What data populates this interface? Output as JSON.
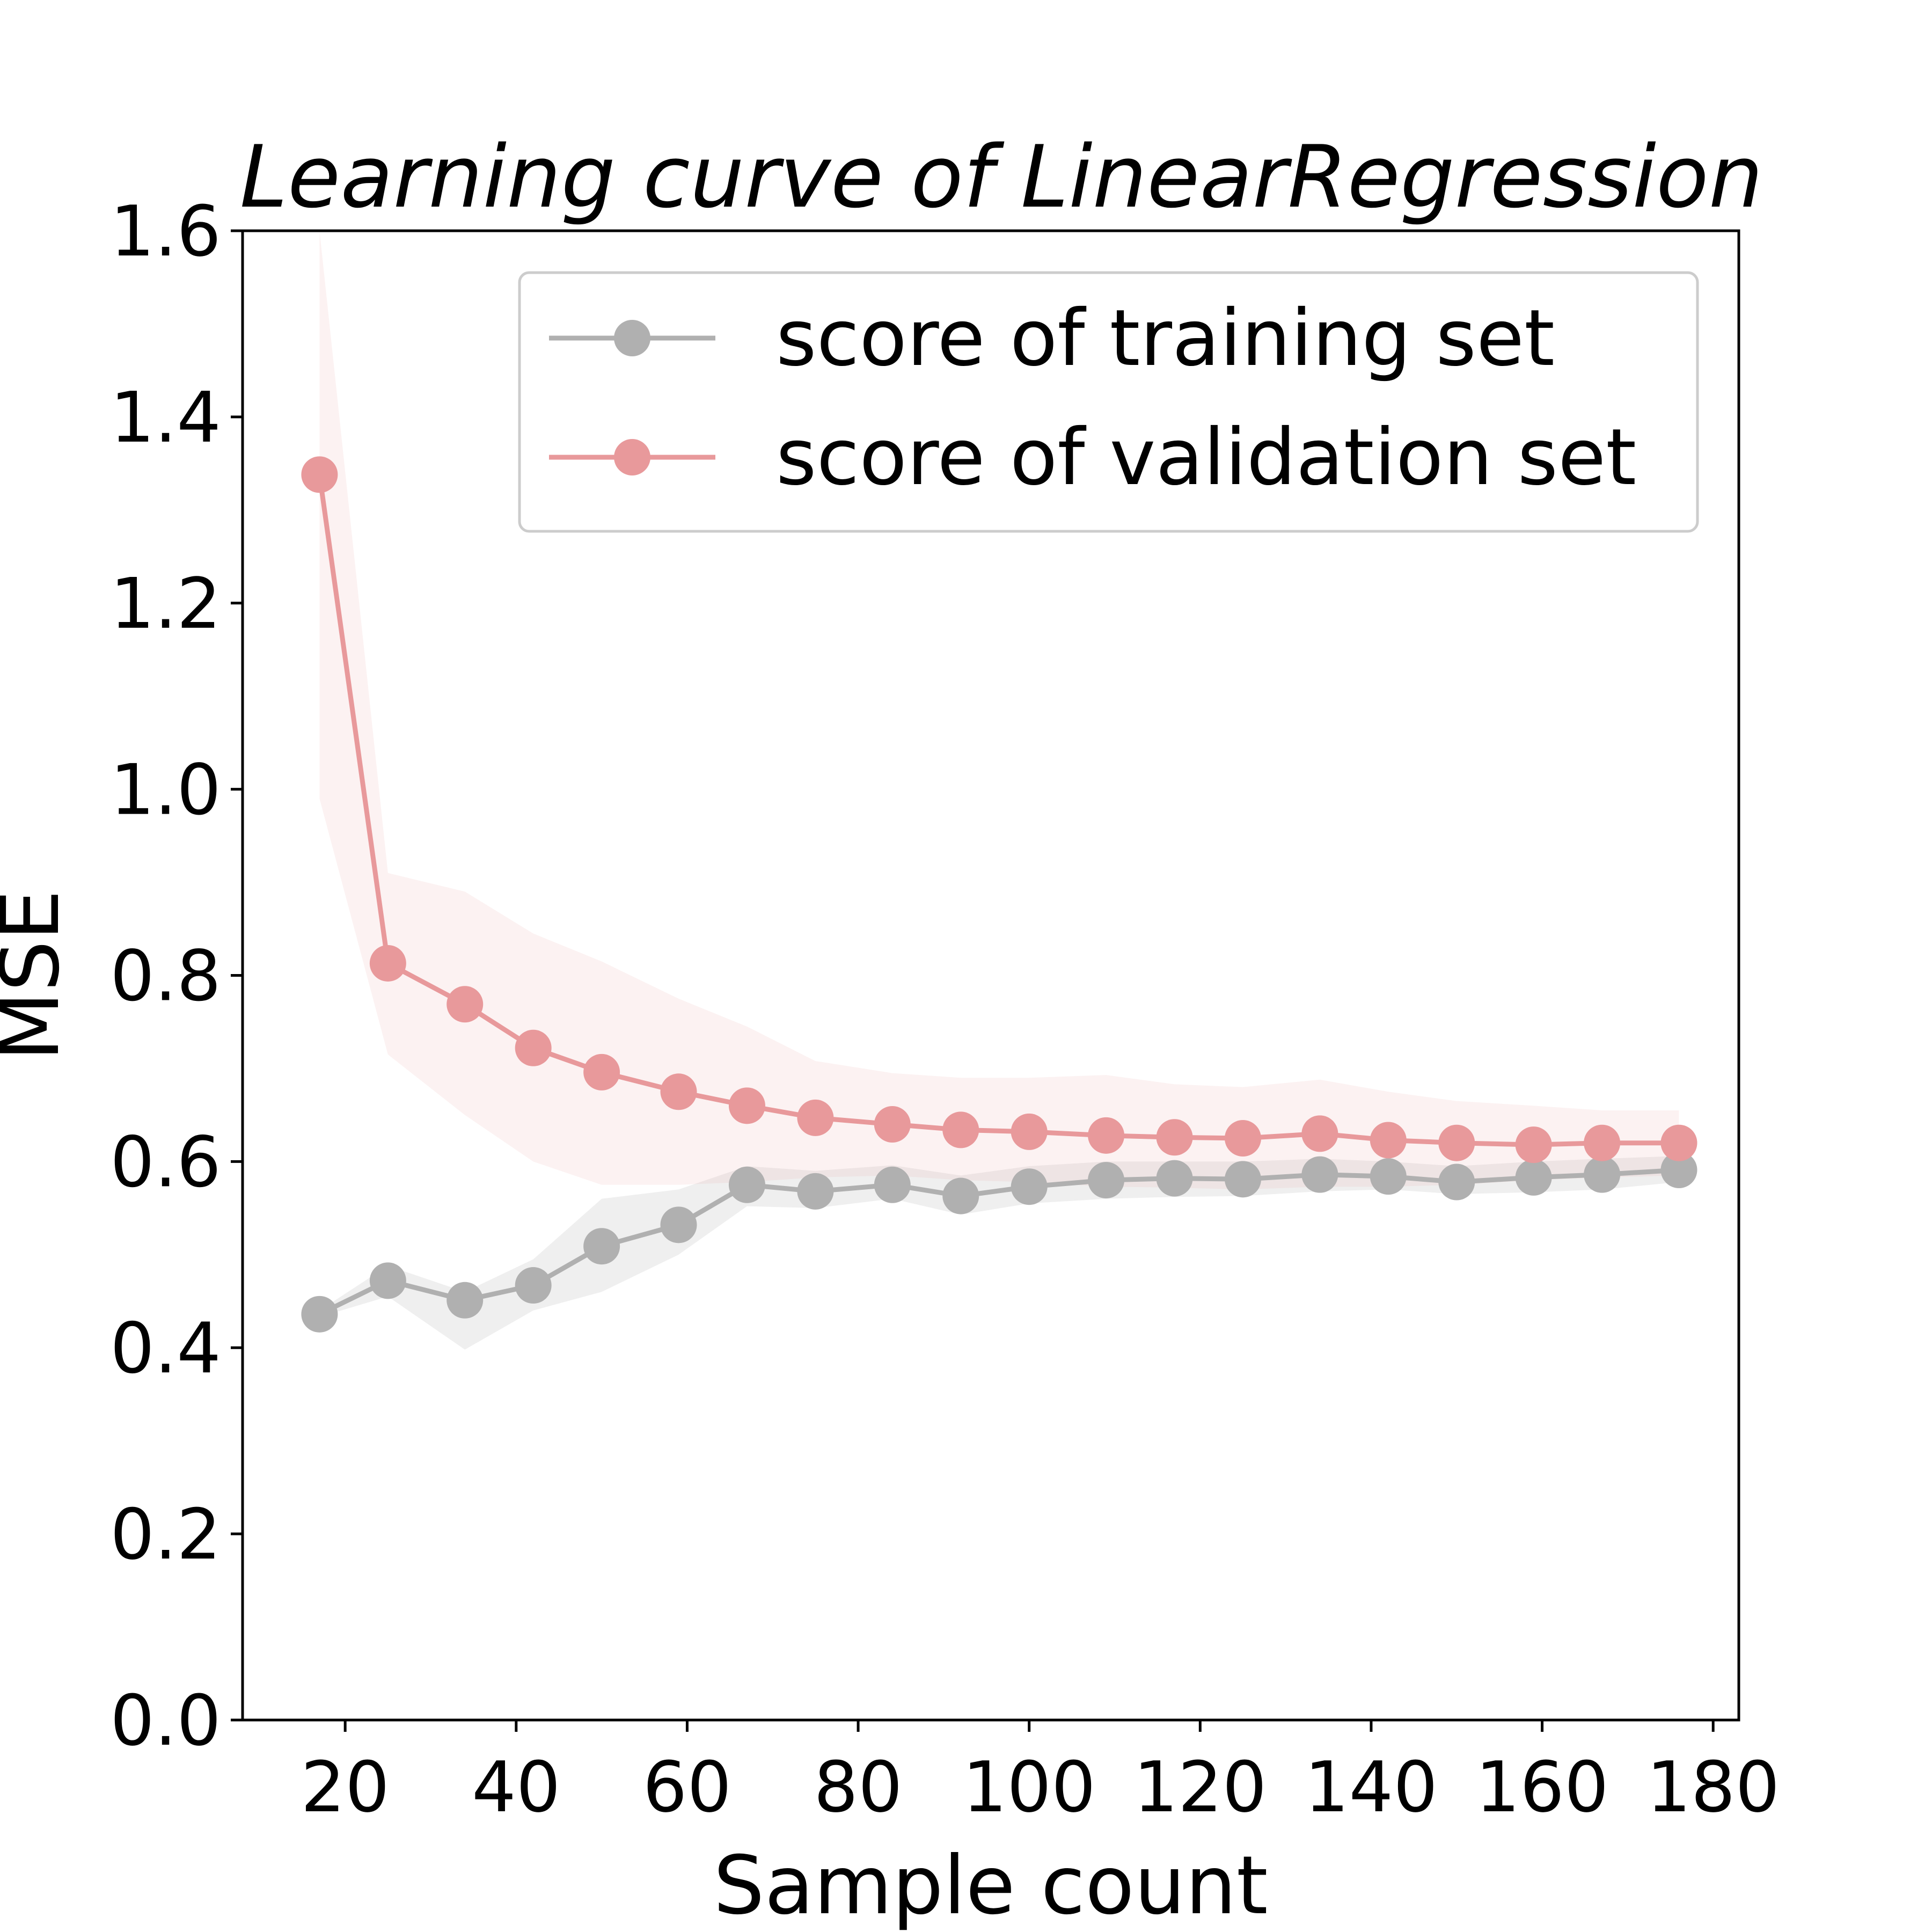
{
  "chart_data": {
    "type": "line",
    "title": "Learning curve of LinearRegression",
    "xlabel": "Sample count",
    "ylabel": "MSE",
    "xlim": [
      8,
      183
    ],
    "ylim": [
      0,
      1.6
    ],
    "xticks": [
      "20",
      "40",
      "60",
      "80",
      "100",
      "120",
      "140",
      "160",
      "180"
    ],
    "yticks": [
      "0.0",
      "0.2",
      "0.4",
      "0.6",
      "0.8",
      "1.0",
      "1.2",
      "1.4",
      "1.6"
    ],
    "grid": false,
    "legend_position": "top-right",
    "x": [
      17,
      25,
      34,
      42,
      50,
      59,
      67,
      75,
      84,
      92,
      100,
      109,
      117,
      125,
      134,
      142,
      150,
      159,
      167,
      176
    ],
    "series": [
      {
        "name": "score of training set",
        "color": "#b0b0b0",
        "values": [
          0.436,
          0.472,
          0.451,
          0.467,
          0.509,
          0.532,
          0.575,
          0.568,
          0.575,
          0.563,
          0.573,
          0.58,
          0.582,
          0.581,
          0.586,
          0.584,
          0.578,
          0.583,
          0.586,
          0.591
        ],
        "band_upper": [
          0.44,
          0.488,
          0.46,
          0.495,
          0.56,
          0.57,
          0.595,
          0.59,
          0.596,
          0.585,
          0.595,
          0.6,
          0.6,
          0.6,
          0.603,
          0.6,
          0.595,
          0.6,
          0.603,
          0.606
        ],
        "band_lower": [
          0.433,
          0.455,
          0.398,
          0.44,
          0.46,
          0.5,
          0.552,
          0.55,
          0.56,
          0.543,
          0.555,
          0.56,
          0.562,
          0.563,
          0.568,
          0.57,
          0.565,
          0.567,
          0.57,
          0.578
        ]
      },
      {
        "name": "score of validation set",
        "color": "#e8999b",
        "values": [
          1.338,
          0.813,
          0.769,
          0.722,
          0.696,
          0.675,
          0.66,
          0.647,
          0.64,
          0.634,
          0.632,
          0.628,
          0.626,
          0.625,
          0.63,
          0.623,
          0.62,
          0.618,
          0.62,
          0.62
        ],
        "band_upper": [
          1.6,
          0.91,
          0.89,
          0.845,
          0.815,
          0.775,
          0.745,
          0.708,
          0.695,
          0.69,
          0.69,
          0.693,
          0.683,
          0.68,
          0.688,
          0.675,
          0.665,
          0.66,
          0.655,
          0.655
        ],
        "band_lower": [
          0.99,
          0.715,
          0.65,
          0.6,
          0.575,
          0.575,
          0.578,
          0.583,
          0.585,
          0.58,
          0.578,
          0.573,
          0.572,
          0.57,
          0.573,
          0.573,
          0.575,
          0.58,
          0.583,
          0.585
        ]
      }
    ]
  }
}
